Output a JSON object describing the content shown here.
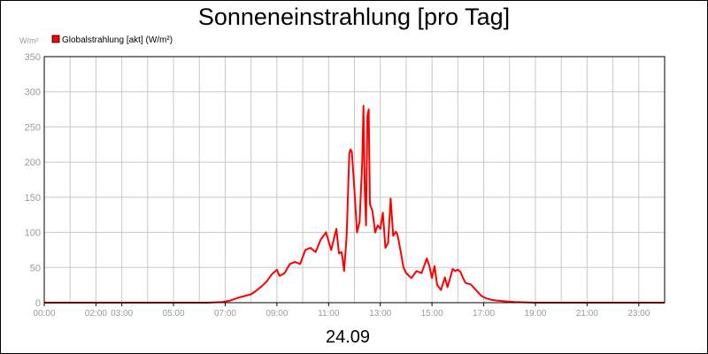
{
  "chart_data": {
    "type": "line",
    "title": "Sonneneinstrahlung [pro Tag]",
    "ylabel": "W/m²",
    "xlabel": "24.09",
    "legend": {
      "label": "Globalstrahlung [akt] (W/m²)",
      "color": "#ff0000",
      "position": "top-left"
    },
    "grid": true,
    "xlim": [
      0,
      24
    ],
    "ylim": [
      0,
      350
    ],
    "yticks": [
      0,
      50,
      100,
      150,
      200,
      250,
      300,
      350
    ],
    "xticks": [
      {
        "hour": 0,
        "label": "00:00"
      },
      {
        "hour": 2,
        "label": "02:00"
      },
      {
        "hour": 3,
        "label": "03:00"
      },
      {
        "hour": 5,
        "label": "05:00"
      },
      {
        "hour": 7,
        "label": "07:00"
      },
      {
        "hour": 9,
        "label": "09:00"
      },
      {
        "hour": 11,
        "label": "11:00"
      },
      {
        "hour": 13,
        "label": "13:00"
      },
      {
        "hour": 15,
        "label": "15:00"
      },
      {
        "hour": 17,
        "label": "17:00"
      },
      {
        "hour": 19,
        "label": "19:00"
      },
      {
        "hour": 21,
        "label": "21:00"
      },
      {
        "hour": 23,
        "label": "23:00"
      }
    ],
    "gridlines_x": [
      1,
      2,
      3,
      4,
      5,
      6,
      7,
      8,
      9,
      10,
      11,
      12,
      13,
      14,
      15,
      16,
      17,
      18,
      19,
      20,
      21,
      22,
      23
    ],
    "series": [
      {
        "name": "Globalstrahlung [akt] (W/m²)",
        "color": "#ff0000",
        "x": [
          0,
          6.3,
          6.9,
          7.2,
          7.5,
          7.8,
          8.0,
          8.2,
          8.4,
          8.6,
          8.8,
          9.0,
          9.1,
          9.3,
          9.5,
          9.7,
          9.9,
          10.0,
          10.1,
          10.3,
          10.5,
          10.7,
          10.9,
          11.1,
          11.3,
          11.4,
          11.5,
          11.55,
          11.6,
          11.7,
          11.8,
          11.85,
          11.9,
          12.0,
          12.1,
          12.2,
          12.3,
          12.35,
          12.4,
          12.45,
          12.5,
          12.55,
          12.6,
          12.7,
          12.8,
          12.9,
          13.0,
          13.1,
          13.2,
          13.3,
          13.4,
          13.5,
          13.6,
          13.65,
          13.7,
          13.8,
          13.9,
          14.0,
          14.2,
          14.4,
          14.6,
          14.8,
          14.9,
          15.0,
          15.1,
          15.2,
          15.35,
          15.5,
          15.6,
          15.8,
          15.9,
          16.0,
          16.1,
          16.2,
          16.3,
          16.5,
          16.7,
          16.9,
          17.1,
          17.3,
          17.5,
          17.8,
          18.2,
          19.0,
          20.0,
          24
        ],
        "y": [
          0,
          0,
          1,
          3,
          7,
          10,
          12,
          17,
          23,
          30,
          40,
          47,
          38,
          42,
          55,
          58,
          55,
          65,
          75,
          78,
          72,
          90,
          100,
          75,
          105,
          70,
          72,
          60,
          45,
          95,
          212,
          218,
          214,
          160,
          100,
          115,
          200,
          280,
          160,
          110,
          265,
          275,
          140,
          130,
          100,
          110,
          105,
          128,
          78,
          85,
          148,
          95,
          101,
          98,
          90,
          70,
          50,
          42,
          35,
          45,
          42,
          63,
          52,
          35,
          52,
          25,
          18,
          36,
          22,
          48,
          45,
          47,
          44,
          35,
          28,
          26,
          18,
          10,
          6,
          4,
          3,
          2,
          1,
          0,
          0,
          0
        ]
      }
    ]
  }
}
